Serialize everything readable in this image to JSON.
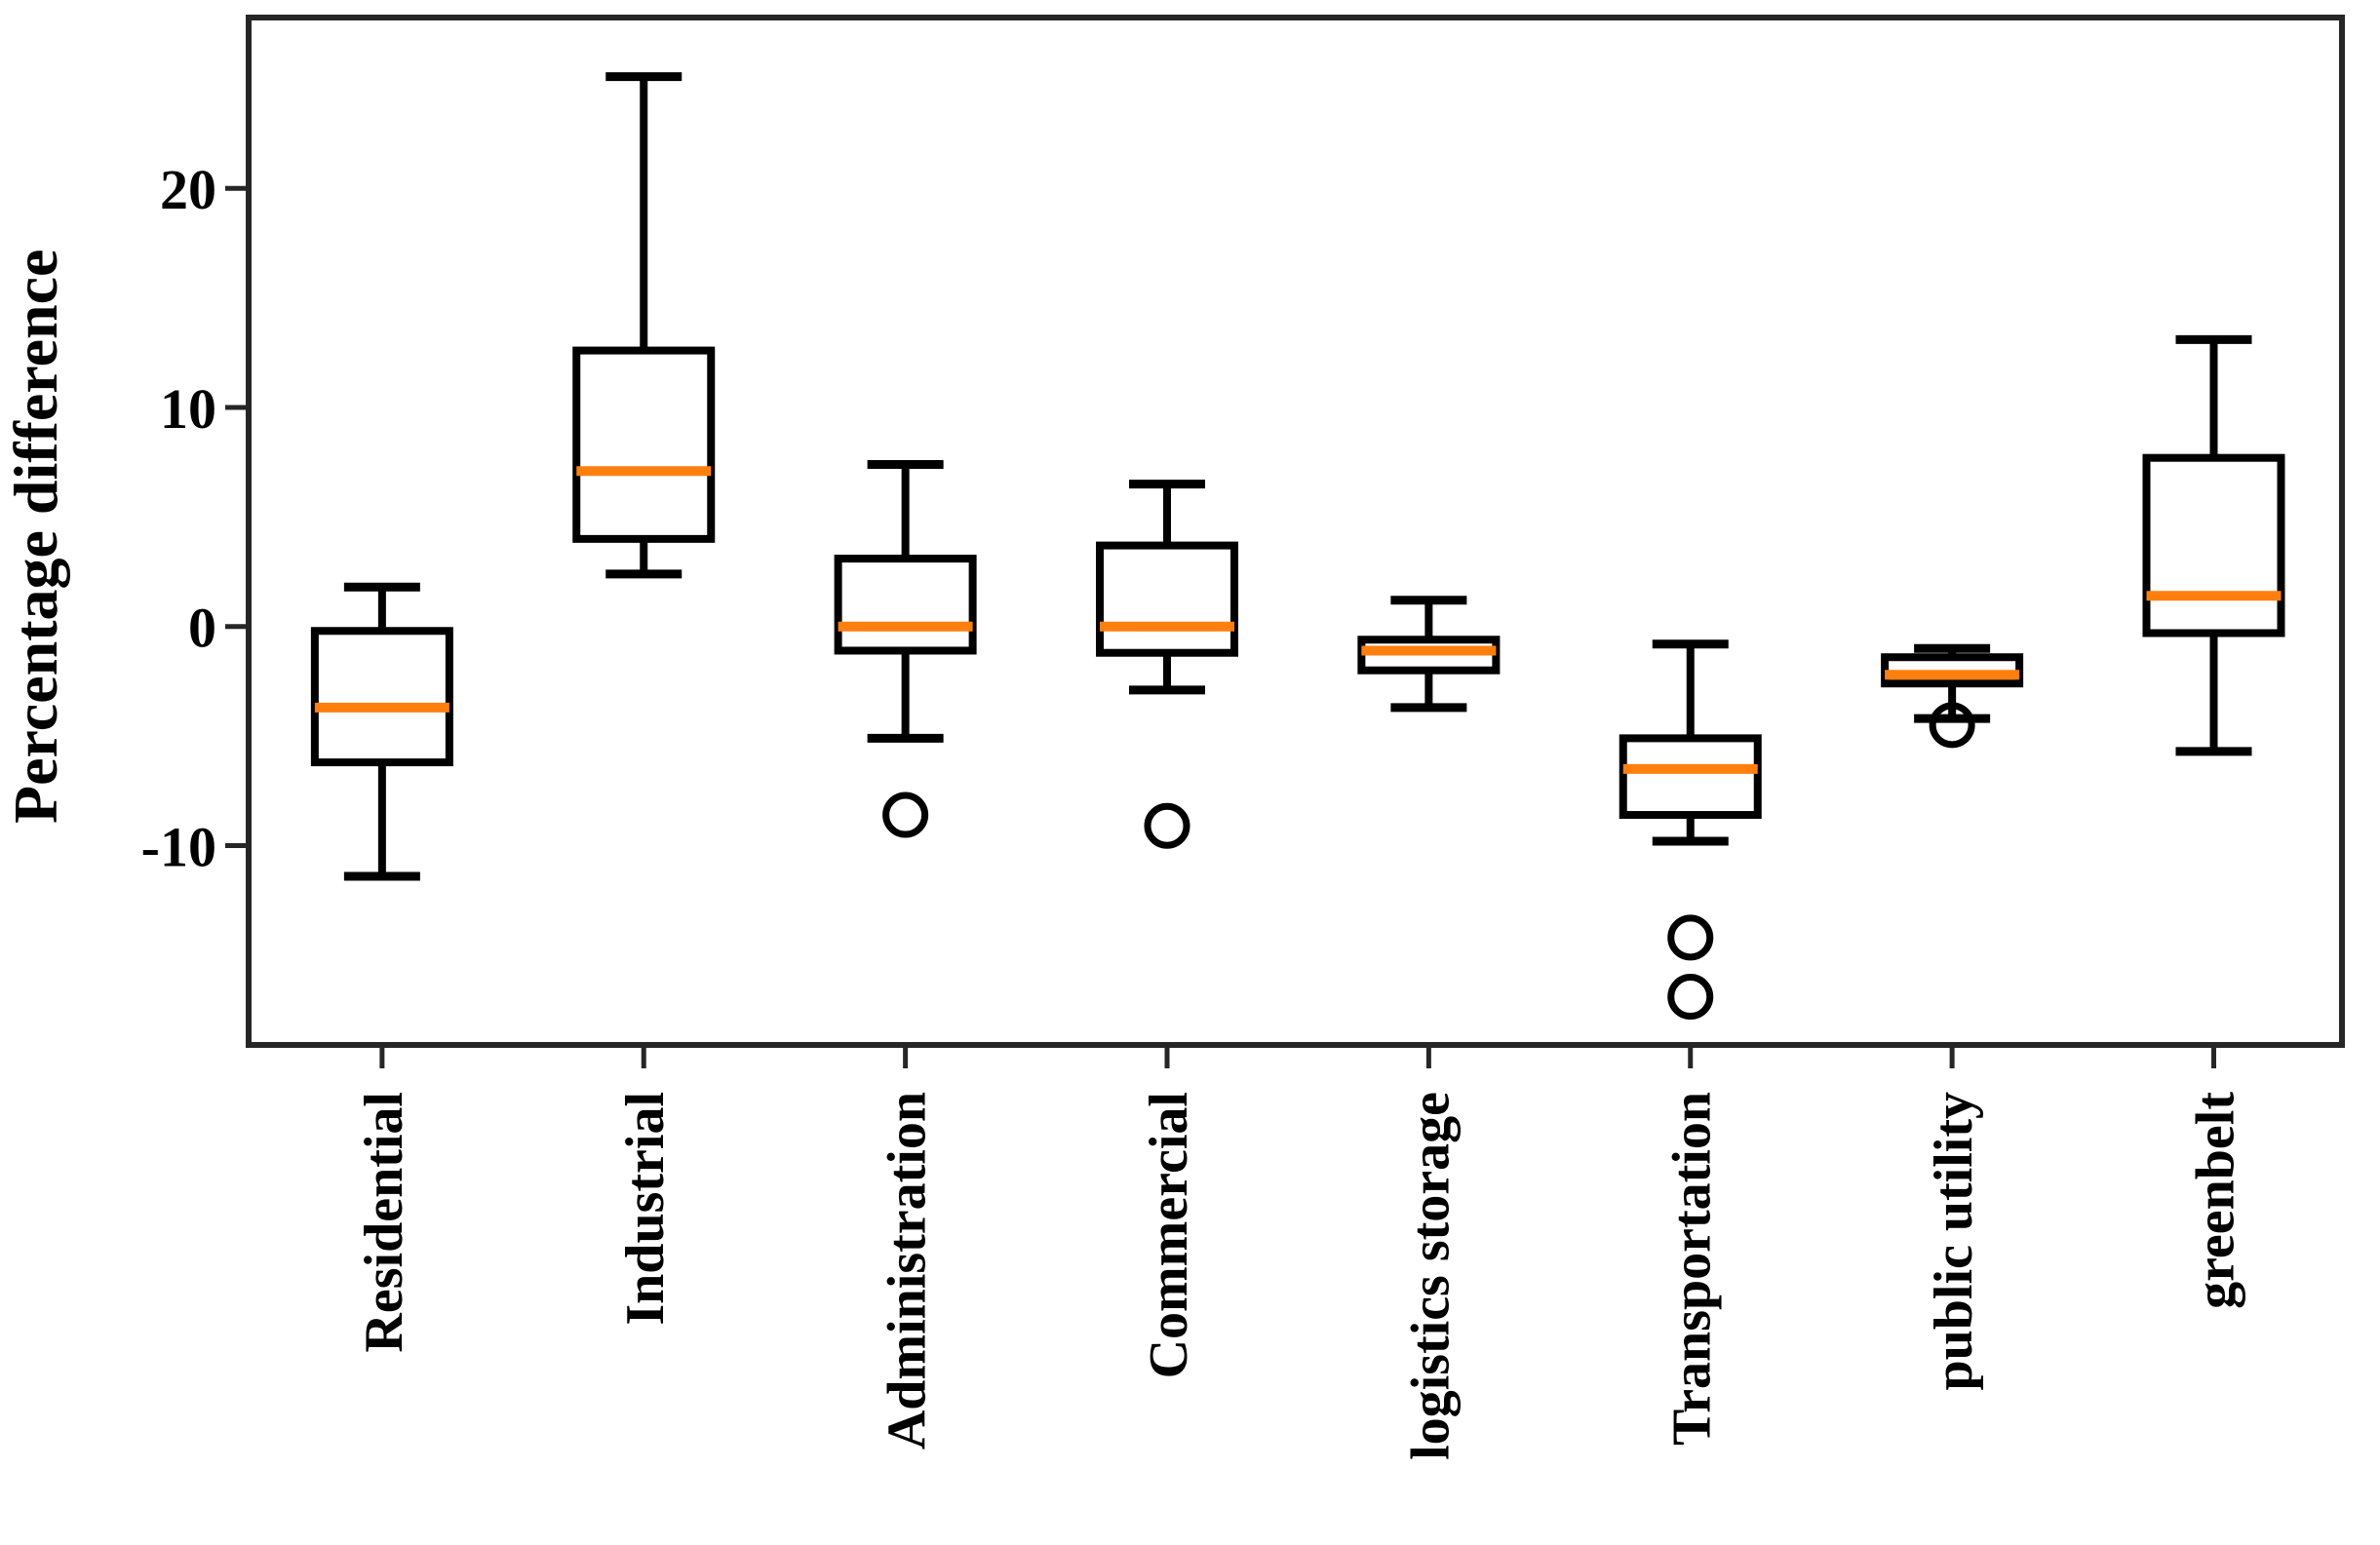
{
  "figure": {
    "background": "#ffffff"
  },
  "chart_data": {
    "type": "boxplot",
    "title": "",
    "xlabel": "",
    "ylabel": "Percentage difference",
    "categories": [
      "Residential",
      "Industrial",
      "Administration",
      "Commercial",
      "logistics storage",
      "Transportation",
      "public utility",
      "greenbelt"
    ],
    "yticks": [
      20,
      10,
      0,
      -10
    ],
    "ylim": [
      -19.1,
      27.8
    ],
    "grid": false,
    "legend": "none",
    "colors": {
      "median": "#ff7f0e",
      "box_edge": "#000000",
      "spine": "#262626",
      "background": "#ffffff"
    },
    "series": [
      {
        "category": "Residential",
        "whisker_low": -11.4,
        "q1": -6.2,
        "median": -3.7,
        "q3": -0.2,
        "whisker_high": 1.8,
        "outliers": []
      },
      {
        "category": "Industrial",
        "whisker_low": 2.4,
        "q1": 4.0,
        "median": 7.1,
        "q3": 12.6,
        "whisker_high": 25.1,
        "outliers": []
      },
      {
        "category": "Administration",
        "whisker_low": -5.1,
        "q1": -1.1,
        "median": 0.0,
        "q3": 3.1,
        "whisker_high": 7.4,
        "outliers": [
          -8.6
        ]
      },
      {
        "category": "Commercial",
        "whisker_low": -2.9,
        "q1": -1.2,
        "median": 0.0,
        "q3": 3.7,
        "whisker_high": 6.5,
        "outliers": [
          -9.1
        ]
      },
      {
        "category": "logistics storage",
        "whisker_low": -3.7,
        "q1": -2.0,
        "median": -1.1,
        "q3": -0.6,
        "whisker_high": 1.2,
        "outliers": []
      },
      {
        "category": "Transportation",
        "whisker_low": -9.8,
        "q1": -8.6,
        "median": -6.5,
        "q3": -5.1,
        "whisker_high": -0.8,
        "outliers": [
          -14.2,
          -16.9
        ]
      },
      {
        "category": "public utility",
        "whisker_low": -4.2,
        "q1": -2.6,
        "median": -2.2,
        "q3": -1.4,
        "whisker_high": -1.0,
        "outliers": [
          -4.5
        ]
      },
      {
        "category": "greenbelt",
        "whisker_low": -5.7,
        "q1": -0.3,
        "median": 1.4,
        "q3": 7.7,
        "whisker_high": 13.1,
        "outliers": []
      }
    ]
  }
}
